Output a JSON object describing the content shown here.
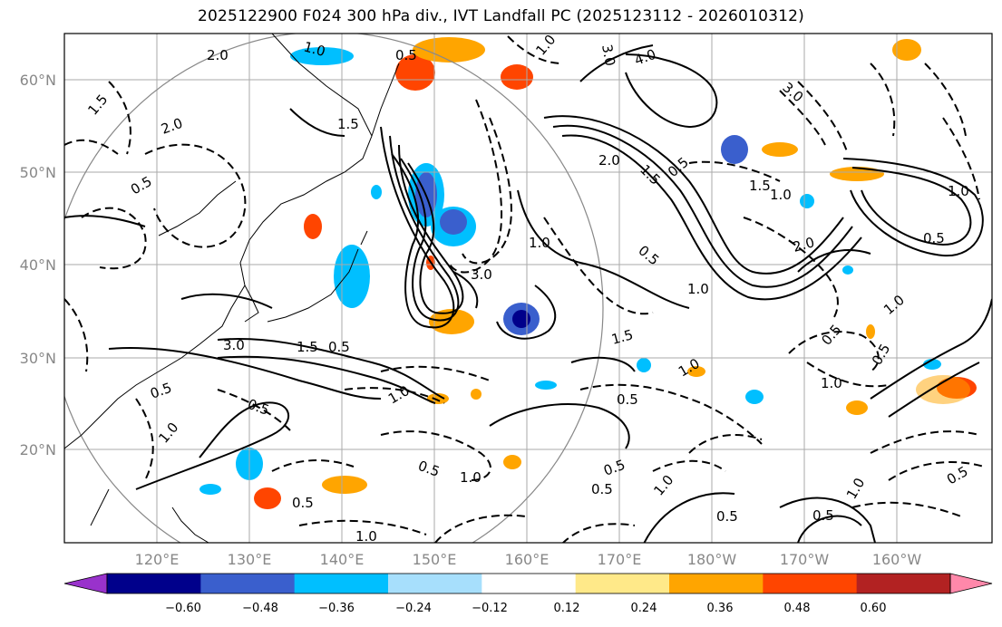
{
  "title": "2025122900 F024 300 hPa div., IVT Landfall PC (2025123112 - 2026010312)",
  "map": {
    "lat_ticks": [
      "60°N",
      "50°N",
      "40°N",
      "30°N",
      "20°N"
    ],
    "lon_ticks": [
      "120°E",
      "130°E",
      "140°E",
      "150°E",
      "160°E",
      "170°E",
      "180°W",
      "170°W",
      "160°W"
    ],
    "gridlines": true,
    "contour_labels": [
      "2.0",
      "1.5",
      "2.0",
      "0.5",
      "1.0",
      "0.5",
      "1.5",
      "3.0",
      "1.0",
      "4.0",
      "3.0",
      "2.0",
      "1.5",
      "0.5",
      "3.0",
      "1.0",
      "0.5",
      "1.0",
      "1.5",
      "2.0",
      "1.0",
      "0.5",
      "1.0",
      "1.5",
      "3.0",
      "0.5",
      "1.0",
      "0.5",
      "0.5",
      "1.0",
      "0.5",
      "1.0",
      "0.5",
      "1.0",
      "0.5",
      "1.0",
      "0.5",
      "0.5",
      "1.0",
      "0.5",
      "0.5",
      "0.5",
      "1.0",
      "0.5",
      "1.0",
      "1.5",
      "1.0",
      "0.5"
    ]
  },
  "colorbar": {
    "labels": [
      "−0.60",
      "−0.48",
      "−0.36",
      "−0.24",
      "−0.12",
      "0.12",
      "0.24",
      "0.36",
      "0.48",
      "0.60"
    ],
    "colors": [
      "#9932cc",
      "#00008b",
      "#3a5fcd",
      "#00bfff",
      "#a7dffc",
      "#ffffff",
      "#ffe989",
      "#ffa500",
      "#ff4500",
      "#b22222",
      "#ff88aa"
    ]
  }
}
